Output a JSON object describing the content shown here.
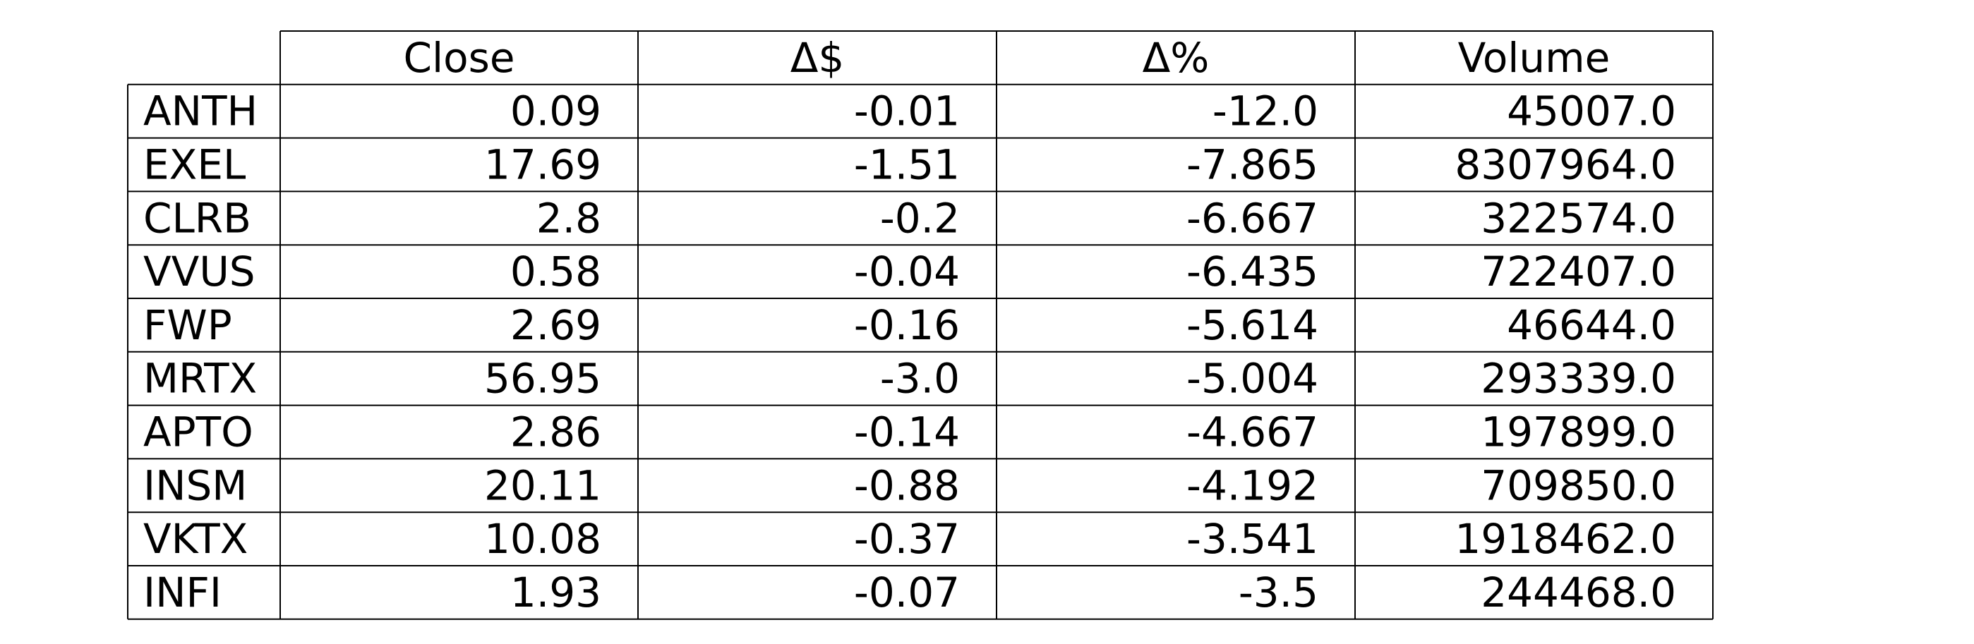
{
  "chart_data": {
    "type": "table",
    "columns": [
      "Close",
      "Δ$",
      "Δ%",
      "Volume"
    ],
    "rows": [
      {
        "label": "ANTH",
        "values": [
          "0.09",
          "-0.01",
          "-12.0",
          "45007.0"
        ]
      },
      {
        "label": "EXEL",
        "values": [
          "17.69",
          "-1.51",
          "-7.865",
          "8307964.0"
        ]
      },
      {
        "label": "CLRB",
        "values": [
          "2.8",
          "-0.2",
          "-6.667",
          "322574.0"
        ]
      },
      {
        "label": "VVUS",
        "values": [
          "0.58",
          "-0.04",
          "-6.435",
          "722407.0"
        ]
      },
      {
        "label": "FWP",
        "values": [
          "2.69",
          "-0.16",
          "-5.614",
          "46644.0"
        ]
      },
      {
        "label": "MRTX",
        "values": [
          "56.95",
          "-3.0",
          "-5.004",
          "293339.0"
        ]
      },
      {
        "label": "APTO",
        "values": [
          "2.86",
          "-0.14",
          "-4.667",
          "197899.0"
        ]
      },
      {
        "label": "INSM",
        "values": [
          "20.11",
          "-0.88",
          "-4.192",
          "709850.0"
        ]
      },
      {
        "label": "VKTX",
        "values": [
          "10.08",
          "-0.37",
          "-3.541",
          "1918462.0"
        ]
      },
      {
        "label": "INFI",
        "values": [
          "1.93",
          "-0.07",
          "-3.5",
          "244468.0"
        ]
      }
    ],
    "colors": {
      "border": "#000000",
      "text": "#000000",
      "background": "#ffffff"
    }
  }
}
